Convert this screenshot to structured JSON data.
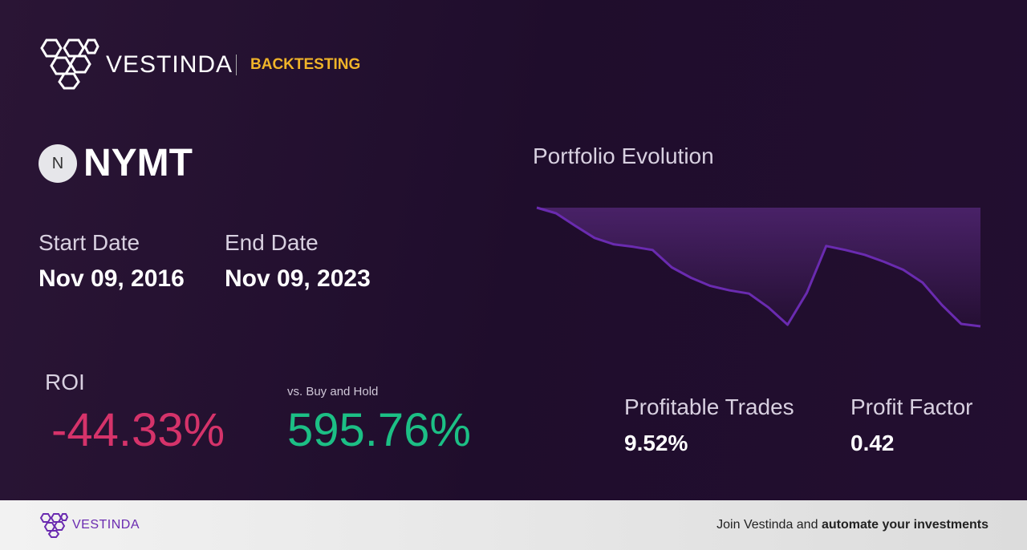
{
  "header": {
    "brand": "VESTINDA",
    "section": "BACKTESTING"
  },
  "ticker": {
    "initial": "N",
    "symbol": "NYMT"
  },
  "dates": {
    "start_label": "Start Date",
    "start": "Nov 09, 2016",
    "end_label": "End Date",
    "end": "Nov 09, 2023"
  },
  "roi": {
    "label": "ROI",
    "value": "-44.33%",
    "benchmark_label": "vs. Buy and Hold",
    "benchmark_value": "595.76%"
  },
  "stats": {
    "profitable_label": "Profitable Trades",
    "profitable": "9.52%",
    "factor_label": "Profit Factor",
    "factor": "0.42"
  },
  "chart_data": {
    "type": "line",
    "title": "Portfolio Evolution",
    "color": "#6a2bb0",
    "values": [
      100,
      97.9,
      93.2,
      88.7,
      86.3,
      85.4,
      84.2,
      77.7,
      73.8,
      70.8,
      69.1,
      67.9,
      62.8,
      56.3,
      68.2,
      85.7,
      84.2,
      82.4,
      79.8,
      76.8,
      72.0,
      63.7,
      56.6,
      55.7
    ]
  },
  "footer": {
    "brand": "VESTINDA",
    "cta_lead": "Join Vestinda and",
    "cta_bold": "automate your investments"
  }
}
